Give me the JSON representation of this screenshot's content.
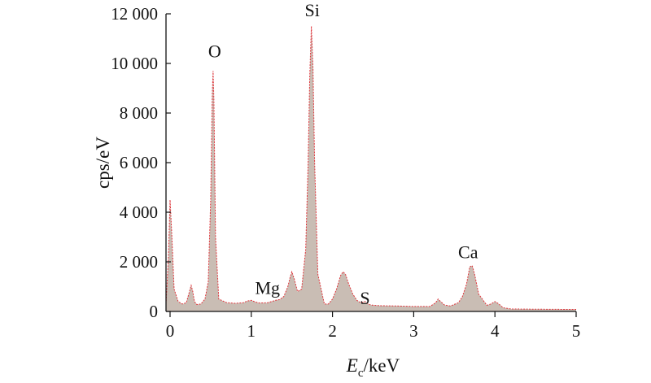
{
  "chart_data": {
    "type": "area",
    "title": "",
    "xlabel_main": "E",
    "xlabel_sub": "c",
    "xlabel_unit": "/keV",
    "ylabel": "cps/eV",
    "xlim": [
      -0.05,
      5
    ],
    "ylim": [
      0,
      12000
    ],
    "x_ticks": [
      0,
      1,
      2,
      3,
      4,
      5
    ],
    "x_tick_labels": [
      "0",
      "1",
      "2",
      "3",
      "4",
      "5"
    ],
    "y_ticks": [
      0,
      2000,
      4000,
      6000,
      8000,
      10000,
      12000
    ],
    "y_tick_labels": [
      "0",
      "2 000",
      "4 000",
      "6 000",
      "8 000",
      "10 000",
      "12 000"
    ],
    "grid": false,
    "fill_color": "#c9bdb4",
    "line_color": "#e0363c",
    "series": [
      {
        "x": [
          -0.05,
          -0.02,
          0.0,
          0.02,
          0.05,
          0.1,
          0.15,
          0.2,
          0.23,
          0.26,
          0.28,
          0.3,
          0.33,
          0.38,
          0.43,
          0.47,
          0.5,
          0.52,
          0.53,
          0.54,
          0.56,
          0.6,
          0.7,
          0.8,
          0.9,
          0.95,
          1.0,
          1.05,
          1.1,
          1.2,
          1.25,
          1.3,
          1.35,
          1.4,
          1.45,
          1.48,
          1.5,
          1.53,
          1.57,
          1.62,
          1.67,
          1.7,
          1.72,
          1.74,
          1.76,
          1.78,
          1.82,
          1.9,
          1.95,
          2.0,
          2.05,
          2.1,
          2.13,
          2.16,
          2.2,
          2.25,
          2.3,
          2.35,
          2.4,
          2.45,
          2.5,
          2.6,
          2.8,
          3.0,
          3.2,
          3.27,
          3.3,
          3.33,
          3.38,
          3.45,
          3.55,
          3.6,
          3.65,
          3.69,
          3.72,
          3.75,
          3.8,
          3.9,
          3.95,
          4.0,
          4.05,
          4.1,
          4.2,
          4.5,
          5.0
        ],
        "y": [
          300,
          2200,
          4500,
          3200,
          900,
          400,
          300,
          350,
          700,
          1050,
          800,
          400,
          280,
          300,
          500,
          1200,
          4500,
          8800,
          9700,
          8500,
          3000,
          500,
          350,
          330,
          350,
          420,
          450,
          380,
          340,
          350,
          400,
          450,
          480,
          600,
          1000,
          1400,
          1600,
          1300,
          800,
          900,
          2500,
          6000,
          9500,
          11500,
          9800,
          6000,
          1500,
          300,
          300,
          500,
          900,
          1450,
          1600,
          1500,
          1100,
          700,
          450,
          350,
          400,
          280,
          250,
          230,
          220,
          200,
          200,
          350,
          500,
          400,
          260,
          220,
          350,
          600,
          1100,
          1800,
          1850,
          1500,
          700,
          250,
          300,
          400,
          300,
          150,
          100,
          90,
          80
        ]
      }
    ],
    "annotations": [
      {
        "text": "O",
        "x": 0.55,
        "y": 10250
      },
      {
        "text": "Si",
        "x": 1.75,
        "y": 11900
      },
      {
        "text": "Mg",
        "x": 1.2,
        "y": 700
      },
      {
        "text": "S",
        "x": 2.4,
        "y": 300
      },
      {
        "text": "Ca",
        "x": 3.67,
        "y": 2150
      }
    ]
  }
}
